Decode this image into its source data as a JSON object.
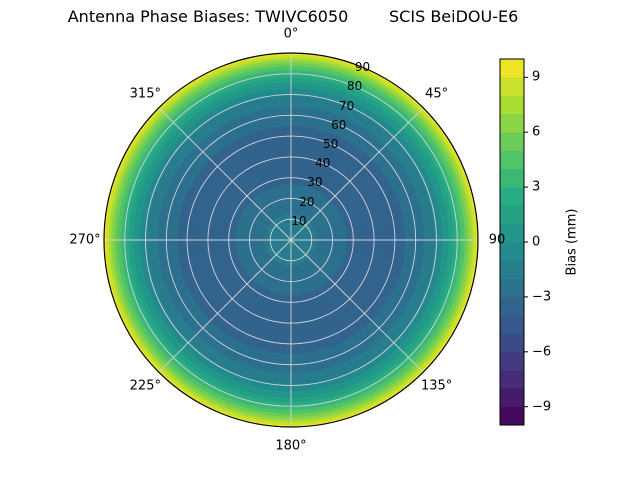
{
  "chart": {
    "title": "Antenna Phase Biases: TWIVC6050        SCIS BeiDOU-E6"
  },
  "chart_data": {
    "type": "polar_contour",
    "title": "Antenna Phase Biases: TWIVC6050        SCIS BeiDOU-E6",
    "colormap": "viridis",
    "vmin": -10,
    "vmax": 10,
    "contour_step_mm": 1,
    "radial_max": 90,
    "radial_label_azimuth_deg": 22.5,
    "angular_ticks": [
      {
        "deg": 0,
        "label": "0°"
      },
      {
        "deg": 45,
        "label": "45°"
      },
      {
        "deg": 90,
        "label": "90"
      },
      {
        "deg": 135,
        "label": "135°"
      },
      {
        "deg": 180,
        "label": "180°"
      },
      {
        "deg": 225,
        "label": "225°"
      },
      {
        "deg": 270,
        "label": "270°"
      },
      {
        "deg": 315,
        "label": "315°"
      }
    ],
    "radial_ticks": [
      {
        "r": 10,
        "label": "10"
      },
      {
        "r": 20,
        "label": "20"
      },
      {
        "r": 30,
        "label": "30"
      },
      {
        "r": 40,
        "label": "40"
      },
      {
        "r": 50,
        "label": "50"
      },
      {
        "r": 60,
        "label": "60"
      },
      {
        "r": 70,
        "label": "70"
      },
      {
        "r": 80,
        "label": "80"
      },
      {
        "r": 90,
        "label": "90"
      }
    ],
    "profile": {
      "description": "Bias (mm) as a function of zenith angle (deg), rotationally symmetric",
      "zenith_deg": [
        0,
        10,
        20,
        30,
        40,
        50,
        60,
        65,
        70,
        75,
        80,
        85,
        90
      ],
      "bias_mm": [
        -0.8,
        -1.8,
        -2.6,
        -3.2,
        -3.5,
        -3.4,
        -2.6,
        -1.9,
        -0.9,
        0.6,
        2.8,
        5.8,
        9.6
      ]
    },
    "colorbar": {
      "label": "Bias (mm)",
      "ticks": [
        {
          "value": 9,
          "label": "9"
        },
        {
          "value": 6,
          "label": "6"
        },
        {
          "value": 3,
          "label": "3"
        },
        {
          "value": 0,
          "label": "0"
        },
        {
          "value": -3,
          "label": "−3"
        },
        {
          "value": -6,
          "label": "−6"
        },
        {
          "value": -9,
          "label": "−9"
        }
      ]
    },
    "style": {
      "grid_color": "#d5d2d9",
      "spine_color": "#000000",
      "background": "#ffffff"
    }
  }
}
